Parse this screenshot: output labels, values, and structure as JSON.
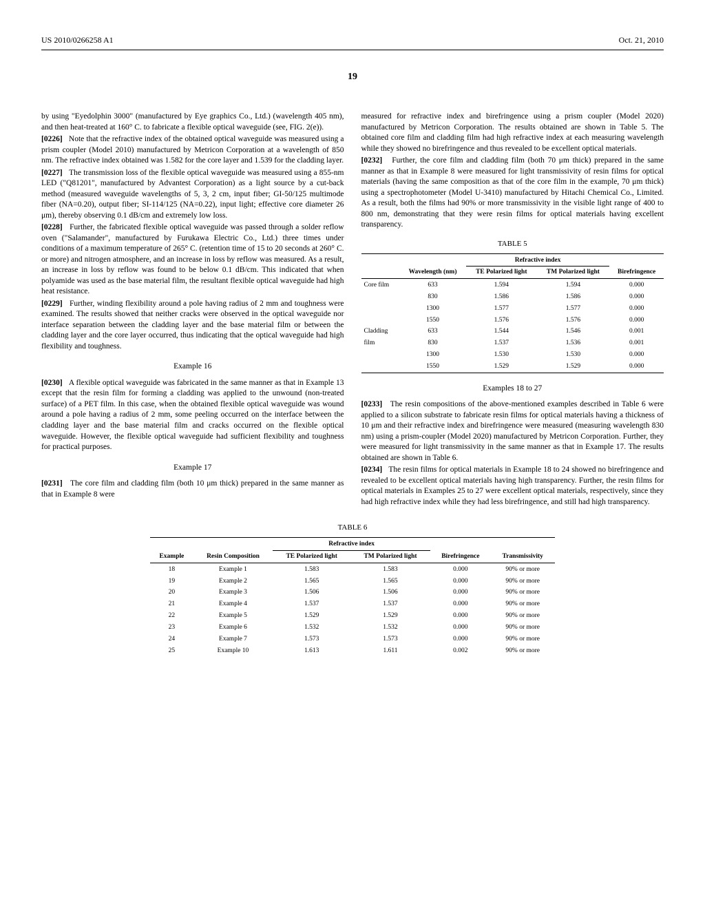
{
  "header": {
    "left": "US 2010/0266258 A1",
    "right": "Oct. 21, 2010"
  },
  "page_number": "19",
  "left_col": {
    "p1": "by using \"Eyedolphin 3000\" (manufactured by Eye graphics Co., Ltd.) (wavelength 405 nm), and then heat-treated at 160° C. to fabricate a flexible optical waveguide (see, FIG. 2(e)).",
    "p2_num": "[0226]",
    "p2": "Note that the refractive index of the obtained optical waveguide was measured using a prism coupler (Model 2010) manufactured by Metricon Corporation at a wavelength of 850 nm. The refractive index obtained was 1.582 for the core layer and 1.539 for the cladding layer.",
    "p3_num": "[0227]",
    "p3": "The transmission loss of the flexible optical waveguide was measured using a 855-nm LED (\"Q81201\", manufactured by Advantest Corporation) as a light source by a cut-back method (measured waveguide wavelengths of 5, 3, 2 cm, input fiber; GI-50/125 multimode fiber (NA=0.20), output fiber; SI-114/125 (NA=0.22), input light; effective core diameter 26 μm), thereby observing 0.1 dB/cm and extremely low loss.",
    "p4_num": "[0228]",
    "p4": "Further, the fabricated flexible optical waveguide was passed through a solder reflow oven (\"Salamander\", manufactured by Furukawa Electric Co., Ltd.) three times under conditions of a maximum temperature of 265° C. (retention time of 15 to 20 seconds at 260° C. or more) and nitrogen atmosphere, and an increase in loss by reflow was measured. As a result, an increase in loss by reflow was found to be below 0.1 dB/cm. This indicated that when polyamide was used as the base material film, the resultant flexible optical waveguide had high heat resistance.",
    "p5_num": "[0229]",
    "p5": "Further, winding flexibility around a pole having radius of 2 mm and toughness were examined. The results showed that neither cracks were observed in the optical waveguide nor interface separation between the cladding layer and the base material film or between the cladding layer and the core layer occurred, thus indicating that the optical waveguide had high flexibility and toughness.",
    "ex16": "Example 16",
    "p6_num": "[0230]",
    "p6": "A flexible optical waveguide was fabricated in the same manner as that in Example 13 except that the resin film for forming a cladding was applied to the unwound (non-treated surface) of a PET film. In this case, when the obtained flexible optical waveguide was wound around a pole having a radius of 2 mm, some peeling occurred on the interface between the cladding layer and the base material film and cracks occurred on the flexible optical waveguide. However, the flexible optical waveguide had sufficient flexibility and toughness for practical purposes.",
    "ex17": "Example 17",
    "p7_num": "[0231]",
    "p7": "The core film and cladding film (both 10 μm thick) prepared in the same manner as that in Example 8 were"
  },
  "right_col": {
    "p1": "measured for refractive index and birefringence using a prism coupler (Model 2020) manufactured by Metricon Corporation. The results obtained are shown in Table 5. The obtained core film and cladding film had high refractive index at each measuring wavelength while they showed no birefringence and thus revealed to be excellent optical materials.",
    "p2_num": "[0232]",
    "p2": "Further, the core film and cladding film (both 70 μm thick) prepared in the same manner as that in Example 8 were measured for light transmissivity of resin films for optical materials (having the same composition as that of the core film in the example, 70 μm thick) using a spectrophotometer (Model U-3410) manufactured by Hitachi Chemical Co., Limited. As a result, both the films had 90% or more transmissivity in the visible light range of 400 to 800 nm, demonstrating that they were resin films for optical materials having excellent transparency.",
    "table5_label": "TABLE 5",
    "ex18": "Examples 18 to 27",
    "p3_num": "[0233]",
    "p3": "The resin compositions of the above-mentioned examples described in Table 6 were applied to a silicon substrate to fabricate resin films for optical materials having a thickness of 10 μm and their refractive index and birefringence were measured (measuring wavelength 830 nm) using a prism-coupler (Model 2020) manufactured by Metricon Corporation. Further, they were measured for light transmissivity in the same manner as that in Example 17. The results obtained are shown in Table 6.",
    "p4_num": "[0234]",
    "p4": "The resin films for optical materials in Example 18 to 24 showed no birefringence and revealed to be excellent optical materials having high transparency. Further, the resin films for optical materials in Examples 25 to 27 were excellent optical materials, respectively, since they had high refractive index while they had less birefringence, and still had high transparency."
  },
  "table5": {
    "group_header": "Refractive index",
    "headers": [
      "",
      "Wavelength (nm)",
      "TE Polarized light",
      "TM Polarized light",
      "Birefringence"
    ],
    "rows": [
      [
        "Core film",
        "633",
        "1.594",
        "1.594",
        "0.000"
      ],
      [
        "",
        "830",
        "1.586",
        "1.586",
        "0.000"
      ],
      [
        "",
        "1300",
        "1.577",
        "1.577",
        "0.000"
      ],
      [
        "",
        "1550",
        "1.576",
        "1.576",
        "0.000"
      ],
      [
        "Cladding",
        "633",
        "1.544",
        "1.546",
        "0.001"
      ],
      [
        "film",
        "830",
        "1.537",
        "1.536",
        "0.001"
      ],
      [
        "",
        "1300",
        "1.530",
        "1.530",
        "0.000"
      ],
      [
        "",
        "1550",
        "1.529",
        "1.529",
        "0.000"
      ]
    ]
  },
  "table6_label": "TABLE 6",
  "table6": {
    "group_header": "Refractive index",
    "headers": [
      "Example",
      "Resin Composition",
      "TE Polarized light",
      "TM Polarized light",
      "Birefringence",
      "Transmissivity"
    ],
    "rows": [
      [
        "18",
        "Example 1",
        "1.583",
        "1.583",
        "0.000",
        "90% or more"
      ],
      [
        "19",
        "Example 2",
        "1.565",
        "1.565",
        "0.000",
        "90% or more"
      ],
      [
        "20",
        "Example 3",
        "1.506",
        "1.506",
        "0.000",
        "90% or more"
      ],
      [
        "21",
        "Example 4",
        "1.537",
        "1.537",
        "0.000",
        "90% or more"
      ],
      [
        "22",
        "Example 5",
        "1.529",
        "1.529",
        "0.000",
        "90% or more"
      ],
      [
        "23",
        "Example 6",
        "1.532",
        "1.532",
        "0.000",
        "90% or more"
      ],
      [
        "24",
        "Example 7",
        "1.573",
        "1.573",
        "0.000",
        "90% or more"
      ],
      [
        "25",
        "Example 10",
        "1.613",
        "1.611",
        "0.002",
        "90% or more"
      ]
    ]
  }
}
